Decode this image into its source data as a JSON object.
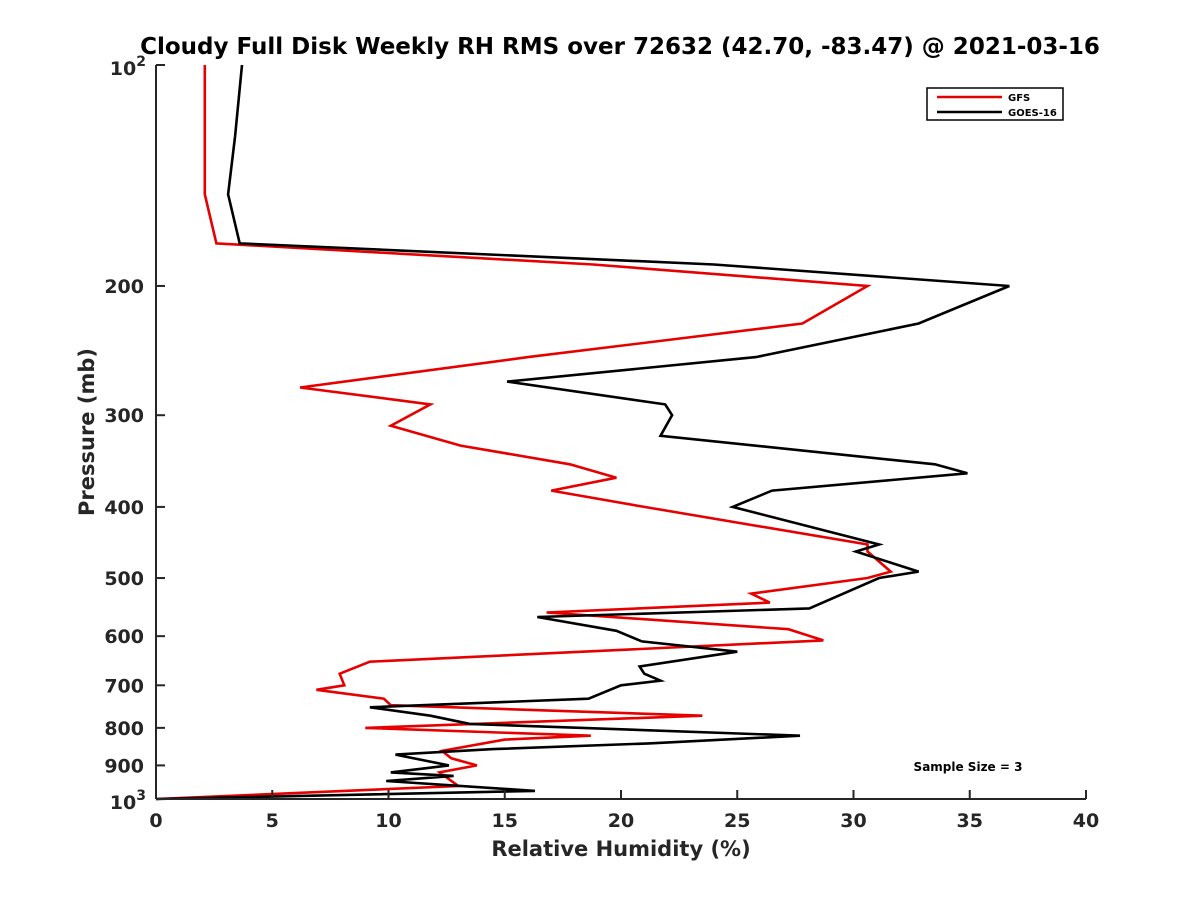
{
  "chart_data": {
    "type": "line",
    "title": "Cloudy Full Disk Weekly RH RMS over 72632 (42.70, -83.47) @ 2021-03-16",
    "xlabel": "Relative Humidity (%)",
    "ylabel": "Pressure (mb)",
    "xlim": [
      0,
      40
    ],
    "ylim": [
      100,
      1000
    ],
    "y_scale": "log",
    "y_reversed": true,
    "x_ticks": [
      0,
      5,
      10,
      15,
      20,
      25,
      30,
      35,
      40
    ],
    "y_ticks": [
      {
        "value": 100,
        "label": "10",
        "sup": "2"
      },
      {
        "value": 200,
        "label": "200"
      },
      {
        "value": 300,
        "label": "300"
      },
      {
        "value": 400,
        "label": "400"
      },
      {
        "value": 500,
        "label": "500"
      },
      {
        "value": 600,
        "label": "600"
      },
      {
        "value": 700,
        "label": "700"
      },
      {
        "value": 800,
        "label": "800"
      },
      {
        "value": 900,
        "label": "900"
      },
      {
        "value": 1000,
        "label": "10",
        "sup": "3"
      }
    ],
    "grid": false,
    "legend_position": "top-right",
    "annotation": "Sample Size = 3",
    "series": [
      {
        "name": "GFS",
        "color": "#e60000",
        "points": [
          [
            2.1,
            100
          ],
          [
            2.1,
            125
          ],
          [
            2.1,
            150
          ],
          [
            2.6,
            175
          ],
          [
            18.8,
            187
          ],
          [
            30.6,
            200
          ],
          [
            27.8,
            225
          ],
          [
            16.0,
            250
          ],
          [
            6.2,
            275
          ],
          [
            11.8,
            290
          ],
          [
            10.1,
            310
          ],
          [
            13.1,
            330
          ],
          [
            17.8,
            350
          ],
          [
            19.8,
            365
          ],
          [
            17.0,
            380
          ],
          [
            21.0,
            400
          ],
          [
            30.6,
            450
          ],
          [
            30.6,
            460
          ],
          [
            31.6,
            490
          ],
          [
            30.6,
            500
          ],
          [
            25.6,
            525
          ],
          [
            26.4,
            540
          ],
          [
            16.8,
            557
          ],
          [
            27.2,
            587
          ],
          [
            28.7,
            608
          ],
          [
            9.2,
            650
          ],
          [
            7.9,
            675
          ],
          [
            8.1,
            700
          ],
          [
            6.9,
            710
          ],
          [
            9.8,
            730
          ],
          [
            10.1,
            745
          ],
          [
            23.5,
            770
          ],
          [
            9.0,
            800
          ],
          [
            18.7,
            820
          ],
          [
            15.0,
            830
          ],
          [
            12.3,
            860
          ],
          [
            12.7,
            880
          ],
          [
            13.8,
            900
          ],
          [
            12.2,
            920
          ],
          [
            13.0,
            960
          ],
          [
            0.0,
            1000
          ]
        ]
      },
      {
        "name": "GOES-16",
        "color": "#000000",
        "points": [
          [
            3.7,
            100
          ],
          [
            3.4,
            125
          ],
          [
            3.1,
            150
          ],
          [
            3.6,
            175
          ],
          [
            24.0,
            187
          ],
          [
            36.7,
            200
          ],
          [
            32.8,
            225
          ],
          [
            25.8,
            250
          ],
          [
            15.1,
            270
          ],
          [
            21.9,
            290
          ],
          [
            22.2,
            300
          ],
          [
            21.7,
            320
          ],
          [
            33.5,
            350
          ],
          [
            34.9,
            360
          ],
          [
            26.5,
            380
          ],
          [
            24.8,
            400
          ],
          [
            31.1,
            450
          ],
          [
            30.1,
            460
          ],
          [
            32.8,
            490
          ],
          [
            31.1,
            500
          ],
          [
            28.1,
            550
          ],
          [
            16.4,
            565
          ],
          [
            19.8,
            590
          ],
          [
            20.9,
            610
          ],
          [
            25.0,
            630
          ],
          [
            20.8,
            660
          ],
          [
            21.0,
            675
          ],
          [
            21.7,
            690
          ],
          [
            20.0,
            700
          ],
          [
            18.6,
            730
          ],
          [
            9.2,
            750
          ],
          [
            11.8,
            770
          ],
          [
            13.5,
            790
          ],
          [
            27.7,
            820
          ],
          [
            21.2,
            840
          ],
          [
            14.5,
            855
          ],
          [
            10.3,
            870
          ],
          [
            12.6,
            900
          ],
          [
            10.1,
            920
          ],
          [
            12.8,
            930
          ],
          [
            9.9,
            945
          ],
          [
            16.3,
            975
          ],
          [
            0.0,
            1000
          ]
        ]
      }
    ]
  }
}
